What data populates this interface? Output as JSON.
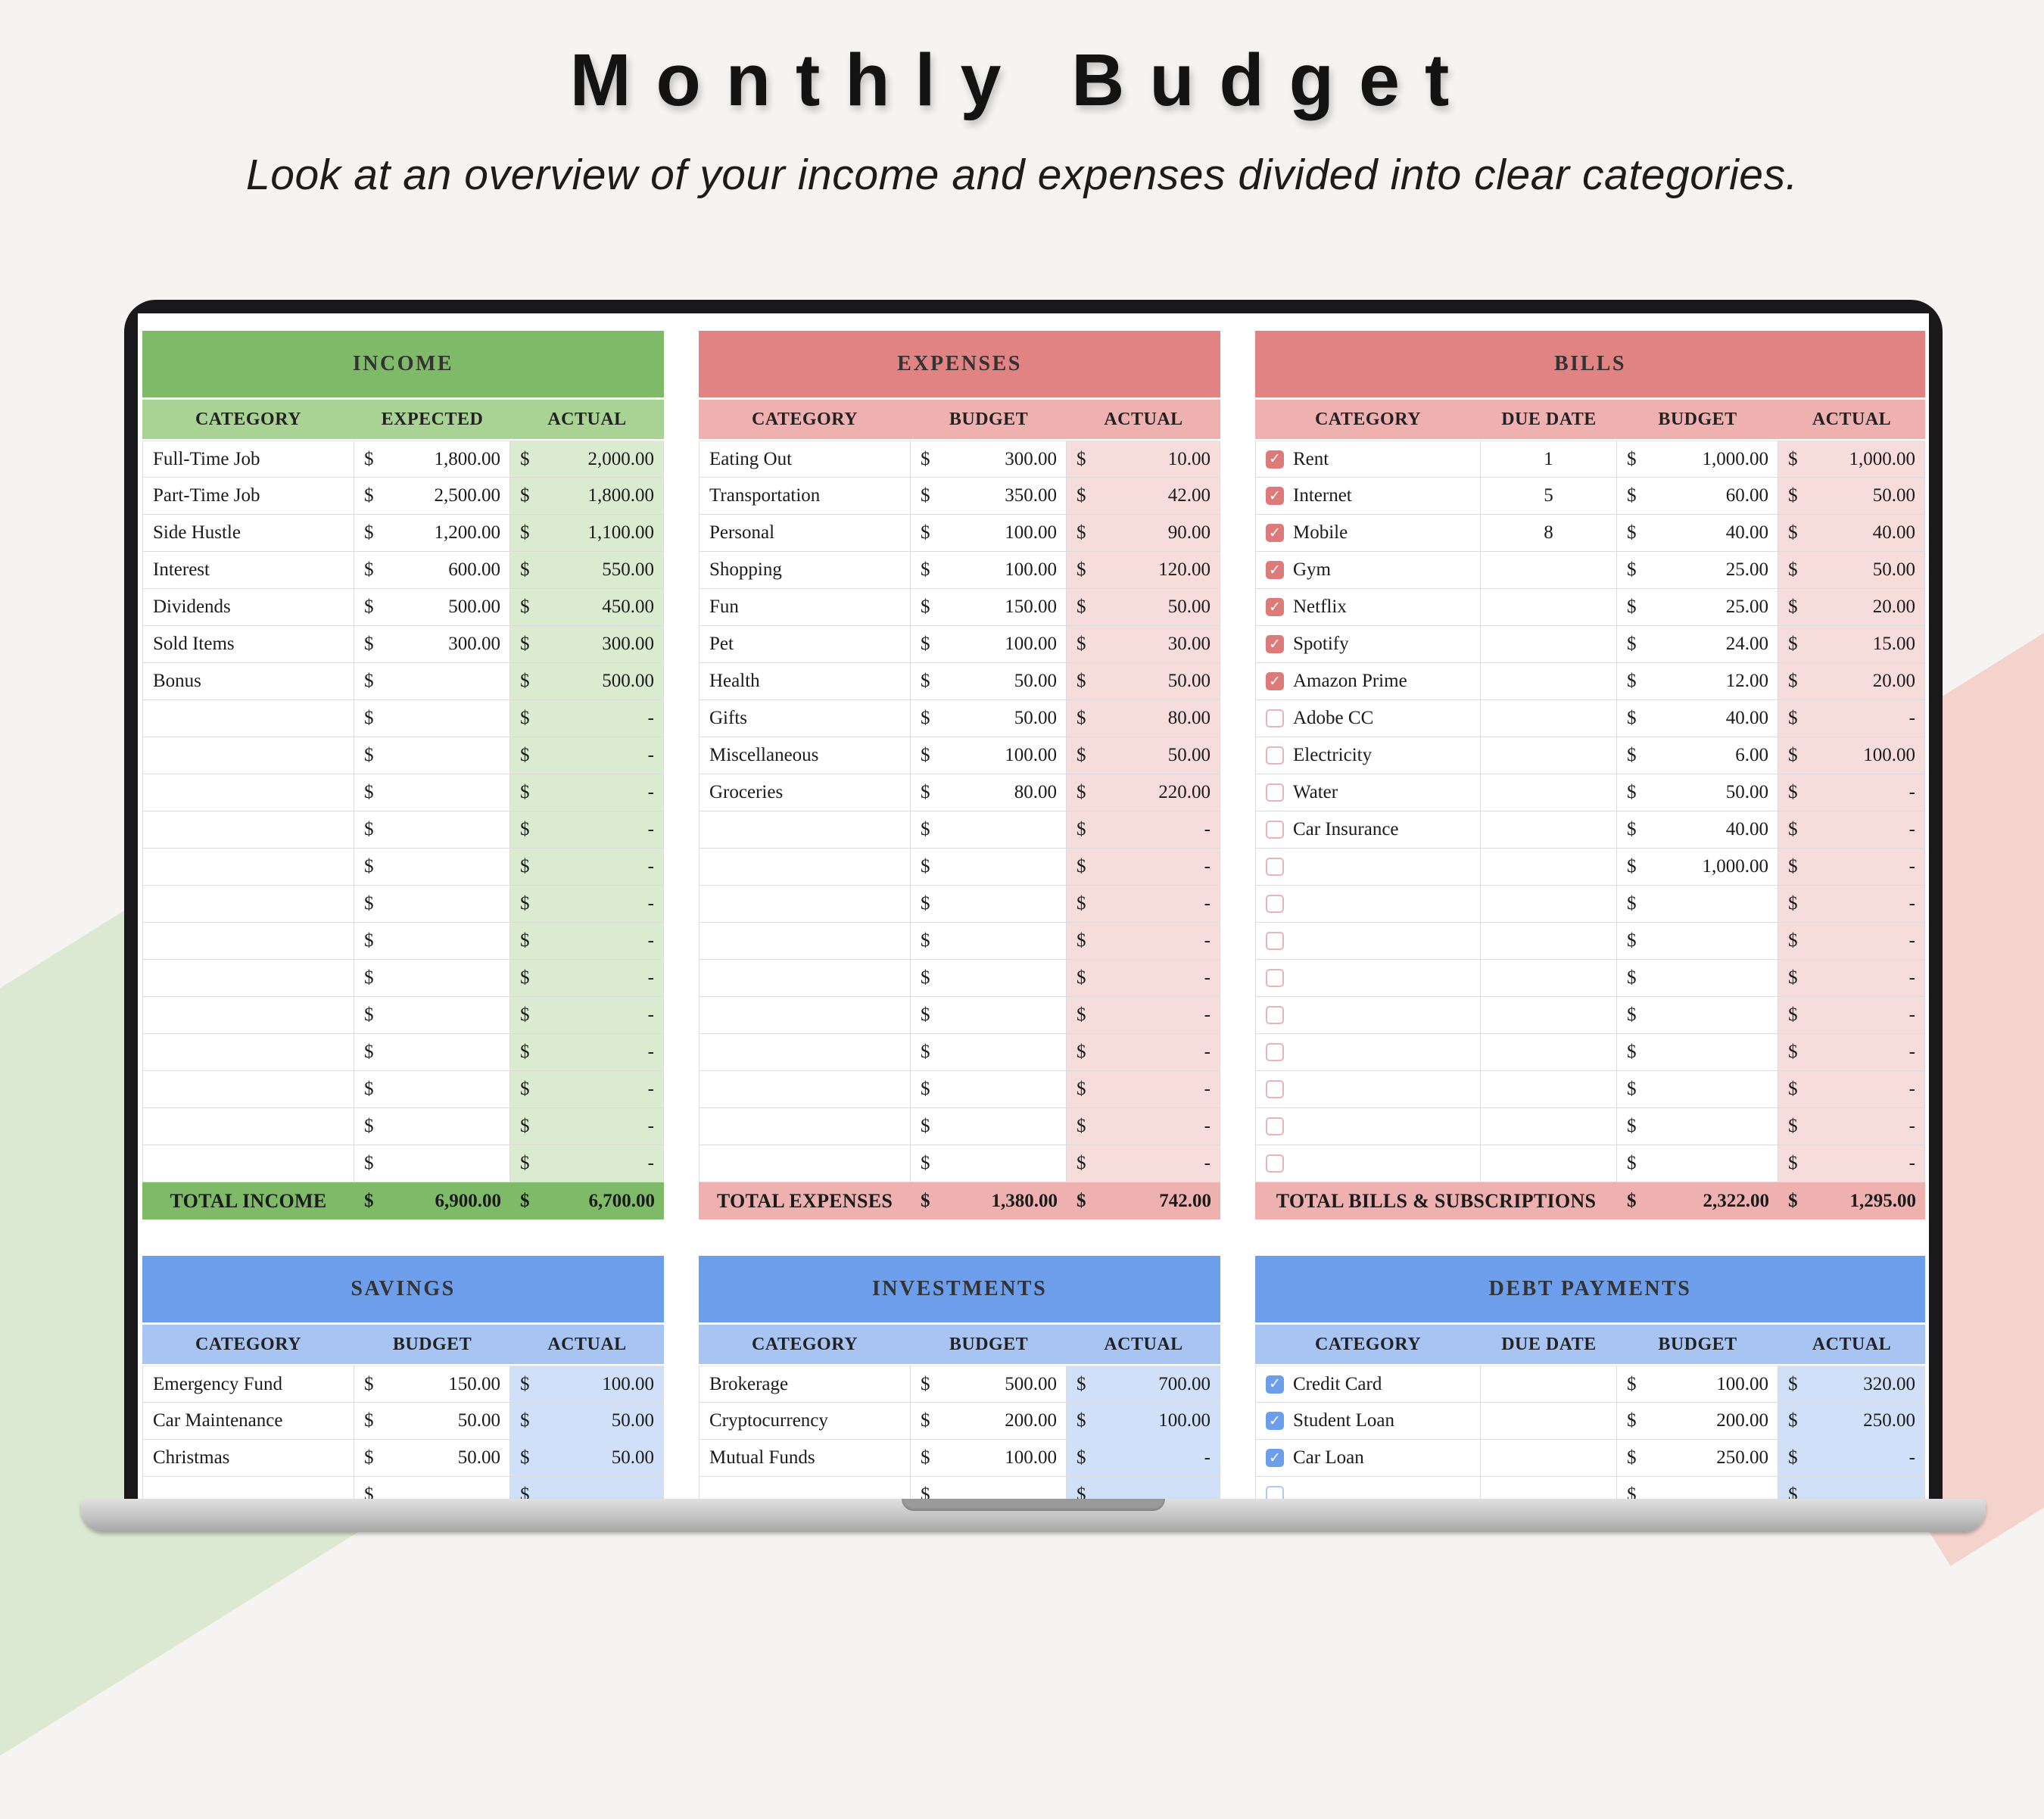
{
  "header": {
    "title": "Monthly Budget",
    "subtitle": "Look at an overview of your income and expenses divided into clear categories."
  },
  "icons": {
    "checkbox_checked": "✓"
  },
  "themes": {
    "green": {
      "header": "#7FBA69",
      "col_header": "#A9D295",
      "cell_tint": "#DAEBCF",
      "total_row": "#7FBA69",
      "accent": "#7FBA69",
      "checkbox_off": "#B9D8AA"
    },
    "red": {
      "header": "#E28383",
      "col_header": "#EFB0B0",
      "cell_tint": "#F7DCDC",
      "total_row": "#EFB0B0",
      "accent": "#DD7A7A",
      "checkbox_off": "#E7B5B5"
    },
    "blue": {
      "header": "#6D9EEB",
      "col_header": "#A7C4F2",
      "cell_tint": "#CFE0F8",
      "total_row": "#A7C4F2",
      "accent": "#6D9EEB",
      "checkbox_off": "#AECAF4"
    }
  },
  "panels": [
    {
      "id": "income",
      "title": "INCOME",
      "theme": "green",
      "has_checkbox": false,
      "has_due": false,
      "columns": [
        "CATEGORY",
        "EXPECTED",
        "ACTUAL"
      ],
      "rows": [
        {
          "name": "Full-Time Job",
          "v1": "1,800.00",
          "v2": "2,000.00"
        },
        {
          "name": "Part-Time Job",
          "v1": "2,500.00",
          "v2": "1,800.00"
        },
        {
          "name": "Side Hustle",
          "v1": "1,200.00",
          "v2": "1,100.00"
        },
        {
          "name": "Interest",
          "v1": "600.00",
          "v2": "550.00"
        },
        {
          "name": "Dividends",
          "v1": "500.00",
          "v2": "450.00"
        },
        {
          "name": "Sold Items",
          "v1": "300.00",
          "v2": "300.00"
        },
        {
          "name": "Bonus",
          "v1": "",
          "v2": "500.00"
        },
        {
          "name": "",
          "v1": "",
          "v2": "-"
        },
        {
          "name": "",
          "v1": "",
          "v2": "-"
        },
        {
          "name": "",
          "v1": "",
          "v2": "-"
        },
        {
          "name": "",
          "v1": "",
          "v2": "-"
        },
        {
          "name": "",
          "v1": "",
          "v2": "-"
        },
        {
          "name": "",
          "v1": "",
          "v2": "-"
        },
        {
          "name": "",
          "v1": "",
          "v2": "-"
        },
        {
          "name": "",
          "v1": "",
          "v2": "-"
        },
        {
          "name": "",
          "v1": "",
          "v2": "-"
        },
        {
          "name": "",
          "v1": "",
          "v2": "-"
        },
        {
          "name": "",
          "v1": "",
          "v2": "-"
        },
        {
          "name": "",
          "v1": "",
          "v2": "-"
        },
        {
          "name": "",
          "v1": "",
          "v2": "-"
        }
      ],
      "total": {
        "label": "TOTAL INCOME",
        "v1": "6,900.00",
        "v2": "6,700.00"
      }
    },
    {
      "id": "expenses",
      "title": "EXPENSES",
      "theme": "red",
      "has_checkbox": false,
      "has_due": false,
      "columns": [
        "CATEGORY",
        "BUDGET",
        "ACTUAL"
      ],
      "rows": [
        {
          "name": "Eating Out",
          "v1": "300.00",
          "v2": "10.00"
        },
        {
          "name": "Transportation",
          "v1": "350.00",
          "v2": "42.00"
        },
        {
          "name": "Personal",
          "v1": "100.00",
          "v2": "90.00"
        },
        {
          "name": "Shopping",
          "v1": "100.00",
          "v2": "120.00"
        },
        {
          "name": "Fun",
          "v1": "150.00",
          "v2": "50.00"
        },
        {
          "name": "Pet",
          "v1": "100.00",
          "v2": "30.00"
        },
        {
          "name": "Health",
          "v1": "50.00",
          "v2": "50.00"
        },
        {
          "name": "Gifts",
          "v1": "50.00",
          "v2": "80.00"
        },
        {
          "name": "Miscellaneous",
          "v1": "100.00",
          "v2": "50.00"
        },
        {
          "name": "Groceries",
          "v1": "80.00",
          "v2": "220.00"
        },
        {
          "name": "",
          "v1": "",
          "v2": "-"
        },
        {
          "name": "",
          "v1": "",
          "v2": "-"
        },
        {
          "name": "",
          "v1": "",
          "v2": "-"
        },
        {
          "name": "",
          "v1": "",
          "v2": "-"
        },
        {
          "name": "",
          "v1": "",
          "v2": "-"
        },
        {
          "name": "",
          "v1": "",
          "v2": "-"
        },
        {
          "name": "",
          "v1": "",
          "v2": "-"
        },
        {
          "name": "",
          "v1": "",
          "v2": "-"
        },
        {
          "name": "",
          "v1": "",
          "v2": "-"
        },
        {
          "name": "",
          "v1": "",
          "v2": "-"
        }
      ],
      "total": {
        "label": "TOTAL EXPENSES",
        "v1": "1,380.00",
        "v2": "742.00"
      }
    },
    {
      "id": "bills",
      "title": "BILLS",
      "theme": "red",
      "has_checkbox": true,
      "has_due": true,
      "columns": [
        "CATEGORY",
        "DUE DATE",
        "BUDGET",
        "ACTUAL"
      ],
      "rows": [
        {
          "checked": true,
          "name": "Rent",
          "due": "1",
          "v1": "1,000.00",
          "v2": "1,000.00"
        },
        {
          "checked": true,
          "name": "Internet",
          "due": "5",
          "v1": "60.00",
          "v2": "50.00"
        },
        {
          "checked": true,
          "name": "Mobile",
          "due": "8",
          "v1": "40.00",
          "v2": "40.00"
        },
        {
          "checked": true,
          "name": "Gym",
          "due": "",
          "v1": "25.00",
          "v2": "50.00"
        },
        {
          "checked": true,
          "name": "Netflix",
          "due": "",
          "v1": "25.00",
          "v2": "20.00"
        },
        {
          "checked": true,
          "name": "Spotify",
          "due": "",
          "v1": "24.00",
          "v2": "15.00"
        },
        {
          "checked": true,
          "name": "Amazon Prime",
          "due": "",
          "v1": "12.00",
          "v2": "20.00"
        },
        {
          "checked": false,
          "name": "Adobe CC",
          "due": "",
          "v1": "40.00",
          "v2": "-"
        },
        {
          "checked": false,
          "name": "Electricity",
          "due": "",
          "v1": "6.00",
          "v2": "100.00"
        },
        {
          "checked": false,
          "name": "Water",
          "due": "",
          "v1": "50.00",
          "v2": "-"
        },
        {
          "checked": false,
          "name": "Car Insurance",
          "due": "",
          "v1": "40.00",
          "v2": "-"
        },
        {
          "checked": false,
          "name": "",
          "due": "",
          "v1": "1,000.00",
          "v2": "-"
        },
        {
          "checked": false,
          "name": "",
          "due": "",
          "v1": "",
          "v2": "-"
        },
        {
          "checked": false,
          "name": "",
          "due": "",
          "v1": "",
          "v2": "-"
        },
        {
          "checked": false,
          "name": "",
          "due": "",
          "v1": "",
          "v2": "-"
        },
        {
          "checked": false,
          "name": "",
          "due": "",
          "v1": "",
          "v2": "-"
        },
        {
          "checked": false,
          "name": "",
          "due": "",
          "v1": "",
          "v2": "-"
        },
        {
          "checked": false,
          "name": "",
          "due": "",
          "v1": "",
          "v2": "-"
        },
        {
          "checked": false,
          "name": "",
          "due": "",
          "v1": "",
          "v2": "-"
        },
        {
          "checked": false,
          "name": "",
          "due": "",
          "v1": "",
          "v2": "-"
        }
      ],
      "total": {
        "label": "TOTAL BILLS & SUBSCRIPTIONS",
        "v1": "2,322.00",
        "v2": "1,295.00"
      }
    },
    {
      "id": "savings",
      "title": "SAVINGS",
      "theme": "blue",
      "has_checkbox": false,
      "has_due": false,
      "columns": [
        "CATEGORY",
        "BUDGET",
        "ACTUAL"
      ],
      "rows": [
        {
          "name": "Emergency Fund",
          "v1": "150.00",
          "v2": "100.00"
        },
        {
          "name": "Car Maintenance",
          "v1": "50.00",
          "v2": "50.00"
        },
        {
          "name": "Christmas",
          "v1": "50.00",
          "v2": "50.00"
        },
        {
          "name": "",
          "v1": "",
          "v2": ""
        }
      ],
      "total": null
    },
    {
      "id": "investments",
      "title": "INVESTMENTS",
      "theme": "blue",
      "has_checkbox": false,
      "has_due": false,
      "columns": [
        "CATEGORY",
        "BUDGET",
        "ACTUAL"
      ],
      "rows": [
        {
          "name": "Brokerage",
          "v1": "500.00",
          "v2": "700.00"
        },
        {
          "name": "Cryptocurrency",
          "v1": "200.00",
          "v2": "100.00"
        },
        {
          "name": "Mutual Funds",
          "v1": "100.00",
          "v2": "-"
        },
        {
          "name": "",
          "v1": "",
          "v2": ""
        }
      ],
      "total": null
    },
    {
      "id": "debt-payments",
      "title": "DEBT PAYMENTS",
      "theme": "blue",
      "has_checkbox": true,
      "has_due": true,
      "columns": [
        "CATEGORY",
        "DUE DATE",
        "BUDGET",
        "ACTUAL"
      ],
      "rows": [
        {
          "checked": true,
          "name": "Credit Card",
          "due": "",
          "v1": "100.00",
          "v2": "320.00"
        },
        {
          "checked": true,
          "name": "Student Loan",
          "due": "",
          "v1": "200.00",
          "v2": "250.00"
        },
        {
          "checked": true,
          "name": "Car Loan",
          "due": "",
          "v1": "250.00",
          "v2": "-"
        },
        {
          "checked": false,
          "name": "",
          "due": "",
          "v1": "",
          "v2": ""
        }
      ],
      "total": null
    }
  ]
}
